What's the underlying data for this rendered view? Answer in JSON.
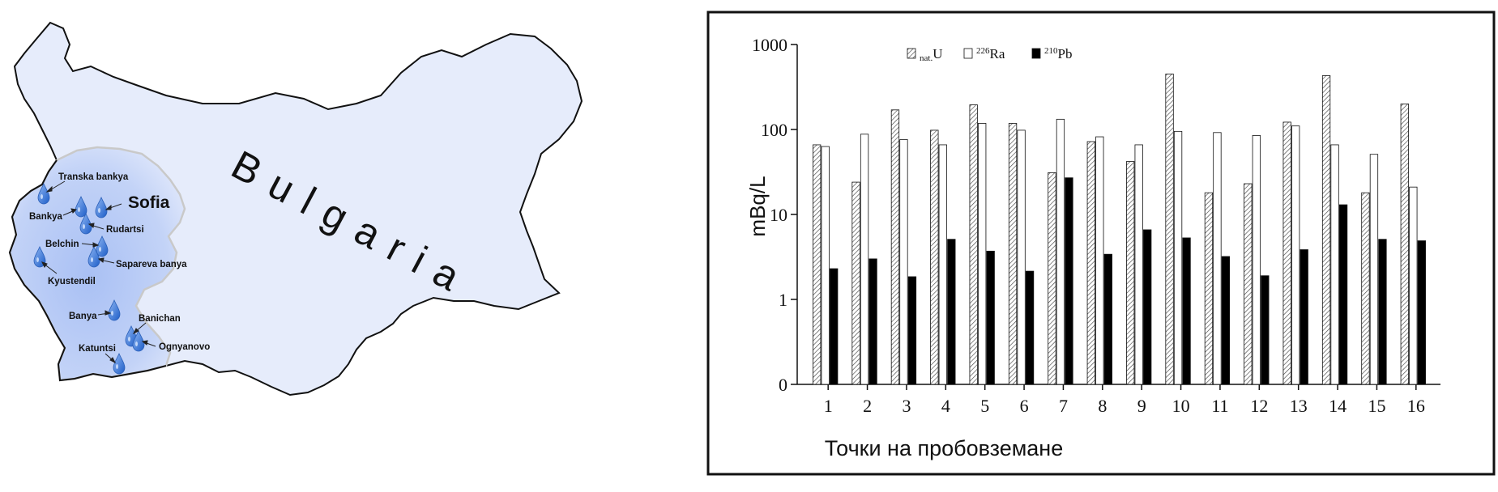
{
  "map": {
    "country_label": "Bulgaria",
    "capital_label": "Sofia",
    "colors": {
      "country_fill": "#e6ecfb",
      "region_fill": "#b5c8f5",
      "drop": "#3a78d8",
      "outline": "#111111"
    },
    "locations": [
      {
        "name": "Transka bankya"
      },
      {
        "name": "Bankya"
      },
      {
        "name": "Rudartsi"
      },
      {
        "name": "Belchin"
      },
      {
        "name": "Sapareva banya"
      },
      {
        "name": "Kyustendil"
      },
      {
        "name": "Banya"
      },
      {
        "name": "Banichan"
      },
      {
        "name": "Ognyanovo"
      },
      {
        "name": "Katuntsi"
      }
    ]
  },
  "chart_data": {
    "type": "bar",
    "y_scale": "log",
    "ylabel": "mBq/L",
    "xlabel": "Точки на пробовземане",
    "ylim": [
      0,
      1000
    ],
    "y_ticks": [
      "0",
      "1",
      "10",
      "100",
      "1000"
    ],
    "legend_position": "top-left",
    "categories": [
      "1",
      "2",
      "3",
      "4",
      "5",
      "6",
      "7",
      "8",
      "9",
      "10",
      "11",
      "12",
      "13",
      "14",
      "15",
      "16"
    ],
    "series": [
      {
        "name": "nat.U",
        "name_main": "U",
        "name_sub": "nat.",
        "name_sup": "",
        "pattern": "hatched",
        "values": [
          66,
          24,
          170,
          98,
          195,
          118,
          31,
          72,
          42,
          450,
          18,
          23,
          122,
          430,
          18,
          200
        ]
      },
      {
        "name": "226Ra",
        "name_main": "Ra",
        "name_sub": "",
        "name_sup": "226",
        "pattern": "white",
        "values": [
          63,
          88,
          76,
          66,
          118,
          98,
          132,
          82,
          66,
          95,
          92,
          85,
          110,
          66,
          51,
          21
        ]
      },
      {
        "name": "210Pb",
        "name_main": "Pb",
        "name_sub": "",
        "name_sup": "210",
        "pattern": "black",
        "values": [
          2.3,
          3.0,
          1.85,
          5.1,
          3.7,
          2.15,
          27,
          3.4,
          6.6,
          5.3,
          3.2,
          1.9,
          3.85,
          13,
          5.1,
          4.9
        ]
      }
    ]
  }
}
